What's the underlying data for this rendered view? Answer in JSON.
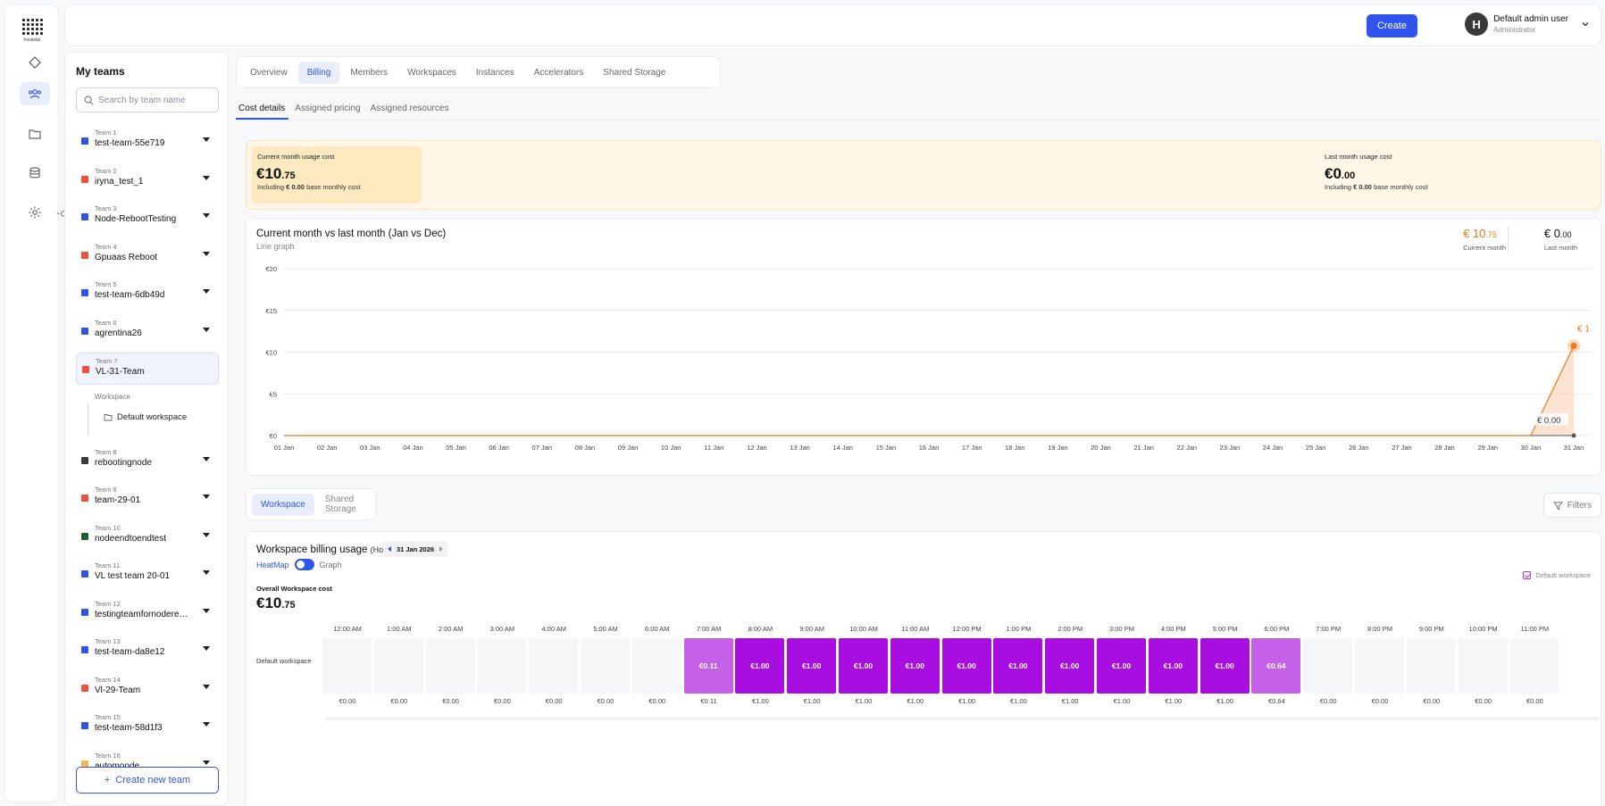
{
  "brand": {
    "logo_text": "hostedai"
  },
  "rail": {
    "icons": [
      "diamond-icon",
      "team-icon",
      "folder-icon",
      "database-icon",
      "gear-icon"
    ]
  },
  "header": {
    "create_label": "Create",
    "user_initial": "H",
    "user_name": "Default admin user",
    "user_role": "Administrator"
  },
  "teams_panel": {
    "title": "My teams",
    "search_placeholder": "Search by team name",
    "new_team_label": "Create new team",
    "workspace_label": "Workspace",
    "workspace_item": "Default workspace",
    "teams": [
      {
        "num": "Team 1",
        "name": "test-team-55e719",
        "color": "#2f54eb"
      },
      {
        "num": "Team 2",
        "name": "iryna_test_1",
        "color": "#f0503c"
      },
      {
        "num": "Team 3",
        "name": "Node-RebootTesting",
        "color": "#2f54eb"
      },
      {
        "num": "Team 4",
        "name": "Gpuaas Reboot",
        "color": "#f0503c"
      },
      {
        "num": "Team 5",
        "name": "test-team-6db49d",
        "color": "#2f54eb"
      },
      {
        "num": "Team 6",
        "name": "agrentina26",
        "color": "#2f54eb"
      },
      {
        "num": "Team 7",
        "name": "VL-31-Team",
        "color": "#f0503c"
      },
      {
        "num": "Team 8",
        "name": "rebootingnode",
        "color": "#3a3a3a"
      },
      {
        "num": "Team 9",
        "name": "team-29-01",
        "color": "#f0503c"
      },
      {
        "num": "Team 10",
        "name": "nodeendtoendtest",
        "color": "#1d5e2f"
      },
      {
        "num": "Team 11",
        "name": "VL test team 20-01",
        "color": "#2f54eb"
      },
      {
        "num": "Team 12",
        "name": "testingteamfornoderebootissue",
        "color": "#2f54eb"
      },
      {
        "num": "Team 13",
        "name": "test-team-da8e12",
        "color": "#2f54eb"
      },
      {
        "num": "Team 14",
        "name": "Vl-29-Team",
        "color": "#f0503c"
      },
      {
        "num": "Team 15",
        "name": "test-team-58d1f3",
        "color": "#2f54eb"
      },
      {
        "num": "Team 16",
        "name": "automoode",
        "color": "#f7b84b"
      }
    ]
  },
  "tabs": [
    "Overview",
    "Billing",
    "Members",
    "Workspaces",
    "Instances",
    "Accelerators",
    "Shared Storage"
  ],
  "subtabs": [
    "Cost details",
    "Assigned pricing",
    "Assigned resources"
  ],
  "usage": {
    "current_label": "Current month usage cost",
    "current_int": "€10",
    "current_dec": ".75",
    "current_inc_pre": "Including",
    "current_inc_val": "€ 0.00",
    "current_inc_post": "base monthly cost",
    "last_label": "Last month usage cost",
    "last_int": "€0",
    "last_dec": ".00",
    "last_inc_pre": "Including",
    "last_inc_val": "€ 0.00",
    "last_inc_post": "base monthly cost"
  },
  "line_chart": {
    "title": "Current month vs last month (Jan vs Dec)",
    "subtitle": "Line graph",
    "legend_current_int": "€ 10",
    "legend_current_dec": ".75",
    "legend_current_label": "Current month",
    "legend_last_int": "€ 0",
    "legend_last_dec": ".00",
    "legend_last_label": "Last month",
    "peak_label": "€ 1",
    "end_label": "€ 0.00",
    "accent_color": "#f5761a"
  },
  "chart_data": {
    "type": "line",
    "x": [
      "01 Jan",
      "02 Jan",
      "03 Jan",
      "04 Jan",
      "05 Jan",
      "06 Jan",
      "07 Jan",
      "08 Jan",
      "09 Jan",
      "10 Jan",
      "11 Jan",
      "12 Jan",
      "13 Jan",
      "14 Jan",
      "15 Jan",
      "16 Jan",
      "17 Jan",
      "18 Jan",
      "19 Jan",
      "20 Jan",
      "21 Jan",
      "22 Jan",
      "23 Jan",
      "24 Jan",
      "25 Jan",
      "26 Jan",
      "27 Jan",
      "28 Jan",
      "29 Jan",
      "30 Jan",
      "31 Jan"
    ],
    "yticks": [
      "€0",
      "€5",
      "€10",
      "€15",
      "€20"
    ],
    "ylim": [
      0,
      20
    ],
    "series": [
      {
        "name": "Current month",
        "values": [
          0,
          0,
          0,
          0,
          0,
          0,
          0,
          0,
          0,
          0,
          0,
          0,
          0,
          0,
          0,
          0,
          0,
          0,
          0,
          0,
          0,
          0,
          0,
          0,
          0,
          0,
          0,
          0,
          0,
          0,
          10.75
        ],
        "color": "#f5761a"
      },
      {
        "name": "Last month",
        "values": [
          0,
          0,
          0,
          0,
          0,
          0,
          0,
          0,
          0,
          0,
          0,
          0,
          0,
          0,
          0,
          0,
          0,
          0,
          0,
          0,
          0,
          0,
          0,
          0,
          0,
          0,
          0,
          0,
          0,
          0,
          0
        ],
        "color": "#555555"
      }
    ]
  },
  "workspace_tabs": [
    "Workspace",
    "Shared Storage"
  ],
  "filters_label": "Filters",
  "heatmap": {
    "title": "Workspace billing usage",
    "title_suffix": "(Hourly)",
    "date": "31 Jan 2026",
    "heatmap_label": "HeatMap",
    "graph_label": "Graph",
    "overall_label": "Overall Workspace cost",
    "overall_int": "€10",
    "overall_dec": ".75",
    "legend_item": "Default workspace",
    "row_label": "Default workspace",
    "hours": [
      "12:00 AM",
      "1:00 AM",
      "2:00 AM",
      "3:00 AM",
      "4:00 AM",
      "5:00 AM",
      "6:00 AM",
      "7:00 AM",
      "8:00 AM",
      "9:00 AM",
      "10:00 AM",
      "11:00 AM",
      "12:00 PM",
      "1:00 PM",
      "2:00 PM",
      "3:00 PM",
      "4:00 PM",
      "5:00 PM",
      "6:00 PM",
      "7:00 PM",
      "8:00 PM",
      "9:00 PM",
      "10:00 PM",
      "11:00 PM"
    ],
    "cells": [
      "",
      "",
      "",
      "",
      "",
      "",
      "",
      "€0.11",
      "€1.00",
      "€1.00",
      "€1.00",
      "€1.00",
      "€1.00",
      "€1.00",
      "€1.00",
      "€1.00",
      "€1.00",
      "€1.00",
      "€0.64",
      "",
      "",
      "",
      "",
      ""
    ],
    "totals": [
      "€0.00",
      "€0.00",
      "€0.00",
      "€0.00",
      "€0.00",
      "€0.00",
      "€0.00",
      "€0.11",
      "€1.00",
      "€1.00",
      "€1.00",
      "€1.00",
      "€1.00",
      "€1.00",
      "€1.00",
      "€1.00",
      "€1.00",
      "€1.00",
      "€0.64",
      "€0.00",
      "€0.00",
      "€0.00",
      "€0.00",
      "€0.00"
    ],
    "full_color": "#a80ee0",
    "light_color": "#c561e8",
    "empty_color": "#f6f6f8"
  }
}
